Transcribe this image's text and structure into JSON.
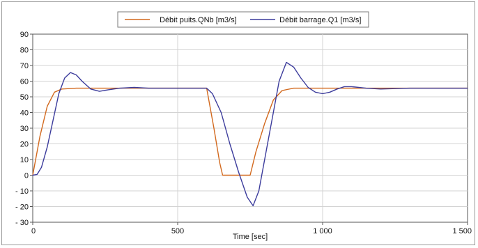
{
  "chart_data": {
    "type": "line",
    "xlabel": "Time  [sec]",
    "ylabel": "",
    "xlim": [
      0,
      1500
    ],
    "ylim": [
      -30,
      90
    ],
    "x_ticks": [
      0,
      500,
      1000,
      1500
    ],
    "x_tick_labels": [
      "0",
      "500",
      "1 000",
      "1 500"
    ],
    "y_ticks": [
      -30,
      -20,
      -10,
      0,
      10,
      20,
      30,
      40,
      50,
      60,
      70,
      80,
      90
    ],
    "y_tick_labels": [
      "- 30",
      "- 20",
      "- 10",
      "0",
      "10",
      "20",
      "30",
      "40",
      "50",
      "60",
      "70",
      "80",
      "90"
    ],
    "grid": true,
    "legend_position": "top-center",
    "series": [
      {
        "name": "Débit puits.QNb [m3/s]",
        "color": "#d2691e",
        "points": [
          [
            0,
            0
          ],
          [
            25,
            25
          ],
          [
            50,
            44
          ],
          [
            75,
            53
          ],
          [
            100,
            55
          ],
          [
            150,
            55.5
          ],
          [
            200,
            55.5
          ],
          [
            600,
            55.5
          ],
          [
            625,
            30
          ],
          [
            645,
            8
          ],
          [
            655,
            0
          ],
          [
            750,
            0
          ],
          [
            770,
            15
          ],
          [
            800,
            33
          ],
          [
            830,
            48
          ],
          [
            860,
            54
          ],
          [
            900,
            55.5
          ],
          [
            1000,
            55.5
          ],
          [
            1100,
            55.5
          ],
          [
            1200,
            55.5
          ],
          [
            1500,
            55.5
          ]
        ]
      },
      {
        "name": "Débit barrage.Q1 [m3/s]",
        "color": "#3c3c9c",
        "points": [
          [
            0,
            0
          ],
          [
            15,
            0.5
          ],
          [
            30,
            5
          ],
          [
            50,
            18
          ],
          [
            70,
            35
          ],
          [
            90,
            52
          ],
          [
            110,
            62
          ],
          [
            130,
            65.5
          ],
          [
            150,
            64
          ],
          [
            170,
            60
          ],
          [
            200,
            55
          ],
          [
            230,
            53.5
          ],
          [
            260,
            54.5
          ],
          [
            300,
            55.5
          ],
          [
            350,
            56
          ],
          [
            400,
            55.5
          ],
          [
            600,
            55.5
          ],
          [
            620,
            52
          ],
          [
            650,
            40
          ],
          [
            680,
            20
          ],
          [
            710,
            2
          ],
          [
            740,
            -14
          ],
          [
            760,
            -19.5
          ],
          [
            780,
            -10
          ],
          [
            800,
            10
          ],
          [
            825,
            35
          ],
          [
            850,
            60
          ],
          [
            875,
            72
          ],
          [
            900,
            69
          ],
          [
            925,
            62
          ],
          [
            950,
            56
          ],
          [
            975,
            53
          ],
          [
            1000,
            52
          ],
          [
            1025,
            53
          ],
          [
            1050,
            55
          ],
          [
            1075,
            56.5
          ],
          [
            1100,
            56.5
          ],
          [
            1150,
            55.5
          ],
          [
            1200,
            55
          ],
          [
            1300,
            55.5
          ],
          [
            1500,
            55.5
          ]
        ]
      }
    ]
  }
}
